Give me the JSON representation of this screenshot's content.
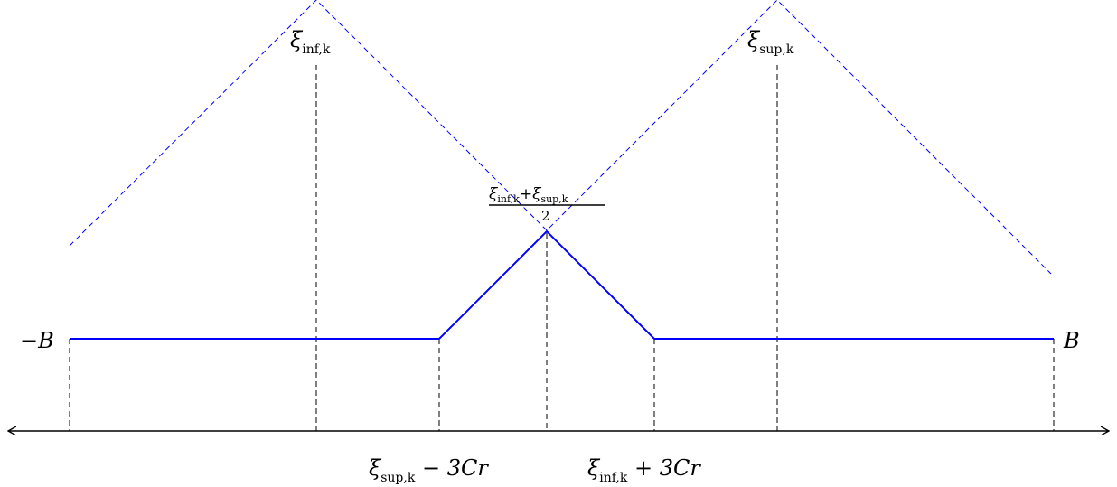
{
  "labels": {
    "neg_b": "−B",
    "pos_b": "B",
    "xi": "ξ",
    "sub_inf": "inf,k",
    "sub_sup": "sup,k",
    "plus": "+",
    "half_den": "2",
    "left_tick_tail": " − 3Cr",
    "right_tick_tail": " + 3Cr"
  },
  "colors": {
    "curve": "#0000ff",
    "dashed_guides": "#000000",
    "axis": "#000000"
  }
}
